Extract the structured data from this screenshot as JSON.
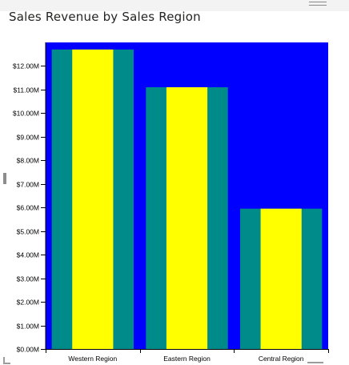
{
  "visual": {
    "title": "Sales Revenue by Sales Region"
  },
  "colors": {
    "plot_background": "#0000FF",
    "bar_outer": "#008B8B",
    "bar_inner": "#FFFF00",
    "axis": "#000000"
  },
  "chart_data": {
    "type": "bar",
    "title": "Sales Revenue by Sales Region",
    "xlabel": "",
    "ylabel": "",
    "categories": [
      "Western Region",
      "Eastern Region",
      "Central Region"
    ],
    "values": [
      12.7,
      11.1,
      5.95
    ],
    "value_unit": "M",
    "ylim": [
      0,
      13.0
    ],
    "y_ticks": [
      0,
      1,
      2,
      3,
      4,
      5,
      6,
      7,
      8,
      9,
      10,
      11,
      12
    ],
    "y_tick_labels": [
      "$0.00M",
      "$1.00M",
      "$2.00M",
      "$3.00M",
      "$4.00M",
      "$5.00M",
      "$6.00M",
      "$7.00M",
      "$8.00M",
      "$9.00M",
      "$10.00M",
      "$11.00M",
      "$12.00M"
    ],
    "grid": false,
    "legend": "none"
  }
}
